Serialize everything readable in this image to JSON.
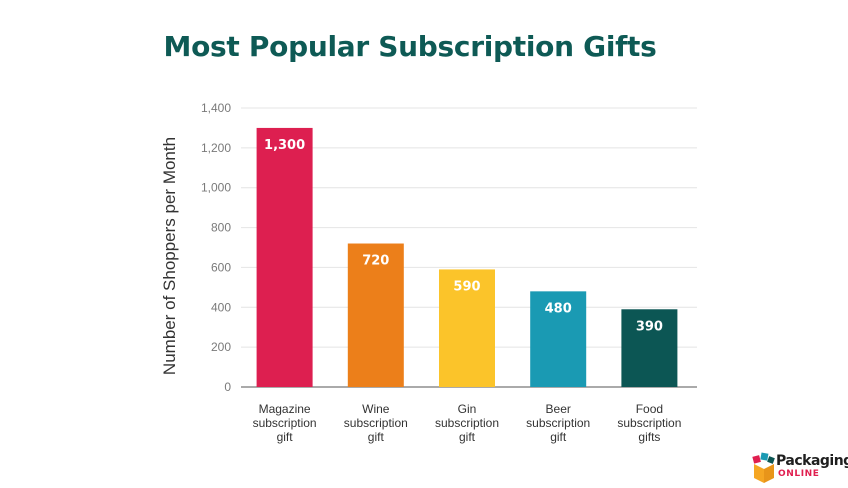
{
  "chart_data": {
    "type": "bar",
    "title": "Most Popular Subscription Gifts",
    "ylabel": "Number of Shoppers per Month",
    "xlabel": "",
    "ylim": [
      0,
      1400
    ],
    "yticks": [
      "0",
      "200",
      "400",
      "600",
      "800",
      "1,000",
      "1,200",
      "1,400"
    ],
    "grid": true,
    "categories": [
      [
        "Magazine",
        "subscription",
        "gift"
      ],
      [
        "Wine",
        "subscription",
        "gift"
      ],
      [
        "Gin",
        "subscription",
        "gift"
      ],
      [
        "Beer",
        "subscription",
        "gift"
      ],
      [
        "Food",
        "subscription",
        "gifts"
      ]
    ],
    "values": [
      1300,
      720,
      590,
      480,
      390
    ],
    "data_labels": [
      "1,300",
      "720",
      "590",
      "480",
      "390"
    ],
    "colors": [
      "#dd1f50",
      "#ec7f1a",
      "#fbc42a",
      "#1a9ab3",
      "#0c5654"
    ]
  },
  "logo": {
    "word": "Packaging",
    "sub": "ONLINE",
    "colors": [
      "#e01e4f",
      "#f5a623",
      "#1a9ab3",
      "#0c5654"
    ]
  }
}
